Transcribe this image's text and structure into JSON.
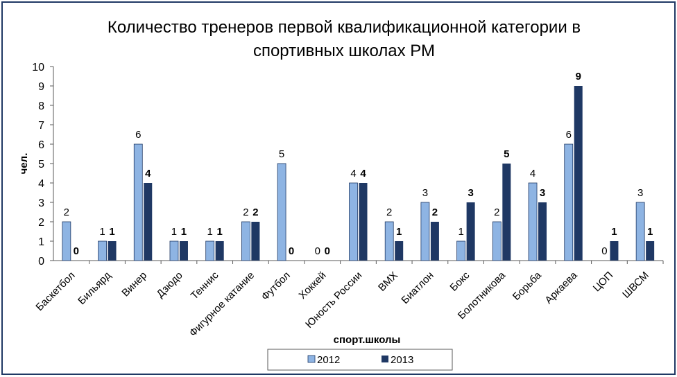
{
  "chart_data": {
    "type": "bar",
    "title_line1": "Количество тренеров первой квалификационной категории в",
    "title_line2": "спортивных школах РМ",
    "xlabel": "спорт.школы",
    "ylabel": "чел.",
    "ylim": [
      0,
      10
    ],
    "yticks": [
      0,
      1,
      2,
      3,
      4,
      5,
      6,
      7,
      8,
      9,
      10
    ],
    "grid": false,
    "legend_position": "bottom",
    "categories": [
      "Баскетбол",
      "Бильярд",
      "Винер",
      "Дзюдо",
      "Теннис",
      "Фигурное катание",
      "Футбол",
      "Хоккей",
      "Юность России",
      "BMX",
      "Биатлон",
      "Бокс",
      "Болотникова",
      "Борьба",
      "Аркаева",
      "ЦОП",
      "ШВСМ"
    ],
    "series": [
      {
        "name": "2012",
        "color": "#8eb4e3",
        "values": [
          2,
          1,
          6,
          1,
          1,
          2,
          5,
          0,
          4,
          2,
          3,
          1,
          2,
          4,
          6,
          0,
          3
        ]
      },
      {
        "name": "2013",
        "color": "#1f3864",
        "values": [
          0,
          1,
          4,
          1,
          1,
          2,
          0,
          0,
          4,
          1,
          2,
          3,
          5,
          3,
          9,
          1,
          1
        ]
      }
    ]
  }
}
